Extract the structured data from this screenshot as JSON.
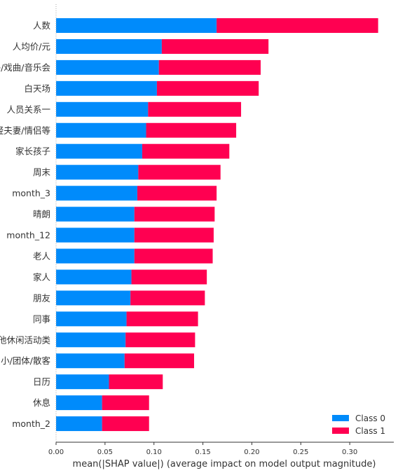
{
  "chart_data": {
    "type": "bar",
    "orientation": "horizontal",
    "stacked": true,
    "title": "",
    "xlabel": "mean(|SHAP value|) (average impact on model output magnitude)",
    "ylabel": "",
    "xlim": [
      0,
      0.345
    ],
    "xticks": [
      "0.00",
      "0.05",
      "0.10",
      "0.15",
      "0.20",
      "0.25",
      "0.30"
    ],
    "grid": false,
    "legend_position": "lower-right",
    "categories": [
      "人数",
      "人均价/元",
      "室外/戏曲/音乐会",
      "白天场",
      "人员关系一",
      "年轻夫妻/情侣等",
      "家长孩子",
      "周末",
      "month_3",
      "晴朗",
      "month_12",
      "老人",
      "家人",
      "朋友",
      "同事",
      "其他休闲活动类",
      "小/团体/散客",
      "日历",
      "休息",
      "month_2"
    ],
    "series": [
      {
        "name": "Class 0",
        "color": "#008bfb",
        "values": [
          0.164,
          0.108,
          0.105,
          0.103,
          0.094,
          0.092,
          0.088,
          0.084,
          0.083,
          0.08,
          0.08,
          0.08,
          0.077,
          0.076,
          0.072,
          0.071,
          0.07,
          0.054,
          0.047,
          0.047
        ]
      },
      {
        "name": "Class 1",
        "color": "#ff0051",
        "values": [
          0.165,
          0.109,
          0.104,
          0.104,
          0.095,
          0.092,
          0.089,
          0.084,
          0.081,
          0.082,
          0.081,
          0.08,
          0.077,
          0.076,
          0.073,
          0.071,
          0.071,
          0.055,
          0.048,
          0.048
        ]
      }
    ]
  }
}
